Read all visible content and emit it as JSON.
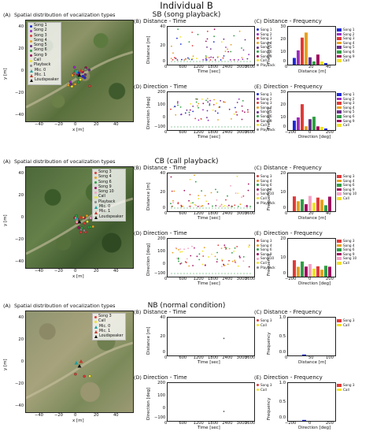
{
  "figure": {
    "title": "Individual B",
    "rows": [
      {
        "condition": "SB (song playback)",
        "map": {
          "label": "(A)",
          "title": "Spatial distribution of vocalization types",
          "legend": [
            "Song 1",
            "Song 2",
            "Song 3",
            "Song 4",
            "Song 5",
            "Song 6",
            "Song 9",
            "Call",
            "Playback",
            "Mic. 0",
            "Mic. 1",
            "Loudspeaker"
          ],
          "xlabel": "x [m]",
          "ylabel": "y [m]",
          "xticks": [
            "−40",
            "−20",
            "0",
            "20",
            "40"
          ],
          "yticks": [
            "40",
            "20",
            "0",
            "−20",
            "−40"
          ]
        },
        "panels": {
          "B": {
            "label": "(B)",
            "title": "Distance - Time",
            "ylabel": "Distance [m]",
            "xlabel": "Time [sec]",
            "yticks": [
              "40",
              "20",
              "0"
            ],
            "xticks": [
              "0",
              "600",
              "1200",
              "1800",
              "2400",
              "3000",
              "3600"
            ]
          },
          "C": {
            "label": "(C)",
            "title": "Distance - Frequency",
            "ylabel": "Frequency",
            "xlabel": "Distance [m]",
            "yticks": [
              "30",
              "20",
              "10",
              "0"
            ],
            "xticks": [
              "0",
              "20",
              "40"
            ]
          },
          "D": {
            "label": "(D)",
            "title": "Direction - Time",
            "ylabel": "Direction [deg]",
            "xlabel": "Time [sec]",
            "yticks": [
              "200",
              "100",
              "0",
              "−100"
            ],
            "xticks": [
              "0",
              "600",
              "1200",
              "1800",
              "2400",
              "3000",
              "3600"
            ]
          },
          "E": {
            "label": "(E)",
            "title": "Direction - Frequency",
            "ylabel": "Frequency",
            "xlabel": "Direction [deg]",
            "yticks": [
              "30",
              "20",
              "10",
              "0"
            ],
            "xticks": [
              "−200",
              "0",
              "200"
            ]
          }
        },
        "mid_legend": [
          "Song 1",
          "Song 2",
          "Song 3",
          "Song 4",
          "Song 5",
          "Song 6",
          "Song 9",
          "Call",
          "Playback"
        ],
        "right_legend": [
          "Song 1",
          "Song 2",
          "Song 3",
          "Song 4",
          "Song 5",
          "Song 6",
          "Song 9",
          "Call"
        ]
      },
      {
        "condition": "CB (call playback)",
        "map": {
          "label": "(A)",
          "title": "Spatial distribution of vocalization types",
          "legend": [
            "Song 3",
            "Song 4",
            "Song 6",
            "Song 9",
            "Song 10",
            "Call",
            "Playback",
            "Mic. 0",
            "Mic. 1",
            "Loudspeaker"
          ],
          "xlabel": "x [m]",
          "ylabel": "y [m]",
          "xticks": [
            "−40",
            "−20",
            "0",
            "20",
            "40"
          ],
          "yticks": [
            "40",
            "20",
            "0",
            "−20",
            "−40"
          ]
        },
        "panels": {
          "B": {
            "label": "(B)",
            "title": "Distance - Time",
            "ylabel": "Distance [m]",
            "xlabel": "Time [sec]",
            "yticks": [
              "40",
              "20",
              "0"
            ],
            "xticks": [
              "0",
              "600",
              "1200",
              "1800",
              "2400",
              "3000",
              "3600"
            ]
          },
          "C": {
            "label": "(C)",
            "title": "Distance - Frequency",
            "ylabel": "Frequency",
            "xlabel": "Distance [m]",
            "yticks": [
              "20",
              "10",
              "0"
            ],
            "xticks": [
              "0",
              "20",
              "40"
            ]
          },
          "D": {
            "label": "(D)",
            "title": "Direction - Time",
            "ylabel": "Direction [deg]",
            "xlabel": "Time [sec]",
            "yticks": [
              "200",
              "100",
              "0",
              "−100"
            ],
            "xticks": [
              "0",
              "600",
              "1200",
              "1800",
              "2400",
              "3000",
              "3600"
            ]
          },
          "E": {
            "label": "(E)",
            "title": "Direction - Frequency",
            "ylabel": "Frequency",
            "xlabel": "Direction [deg]",
            "yticks": [
              "20",
              "10",
              "0"
            ],
            "xticks": [
              "−200",
              "0",
              "200"
            ]
          }
        },
        "mid_legend": [
          "Song 3",
          "Song 4",
          "Song 6",
          "Song 9",
          "Song 10",
          "Call",
          "Playback"
        ],
        "right_legend": [
          "Song 3",
          "Song 4",
          "Song 6",
          "Song 9",
          "Song 10",
          "Call"
        ]
      },
      {
        "condition": "NB (normal condition)",
        "map": {
          "label": "(A)",
          "title": "Spatial distribution of vocalization types",
          "legend": [
            "Song 3",
            "Call",
            "Mic. 0",
            "Mic. 1",
            "Loudspeaker"
          ],
          "xlabel": "x [m]",
          "ylabel": "y [m]",
          "xticks": [
            "−40",
            "−20",
            "0",
            "20",
            "40"
          ],
          "yticks": [
            "40",
            "20",
            "0",
            "−20",
            "−40"
          ]
        },
        "panels": {
          "B": {
            "label": "(B)",
            "title": "Distance - Time",
            "ylabel": "Distance [m]",
            "xlabel": "Time [sec]",
            "yticks": [
              "40",
              "20",
              "0"
            ],
            "xticks": [
              "0",
              "600",
              "1200",
              "1800",
              "2400",
              "3000",
              "3600"
            ]
          },
          "C": {
            "label": "(C)",
            "title": "Distance - Frequency",
            "ylabel": "Frequency",
            "xlabel": "Distance [m]",
            "yticks": [
              "1.0",
              "0.5",
              "0.0"
            ],
            "xticks": [
              "0",
              "50",
              "100"
            ]
          },
          "D": {
            "label": "(D)",
            "title": "Direction - Time",
            "ylabel": "Direction [deg]",
            "xlabel": "Time [sec]",
            "yticks": [
              "200",
              "100",
              "0",
              "−100"
            ],
            "xticks": [
              "0",
              "600",
              "1200",
              "1800",
              "2400",
              "3000",
              "3600"
            ]
          },
          "E": {
            "label": "(E)",
            "title": "Direction - Frequency",
            "ylabel": "Frequency",
            "xlabel": "Direction [deg]",
            "yticks": [
              "1.0",
              "0.5",
              "0.0"
            ],
            "xticks": [
              "−200",
              "0",
              "200"
            ]
          }
        },
        "mid_legend": [
          "Song 3",
          "Call"
        ],
        "right_legend": [
          "Song 3",
          "Call"
        ]
      }
    ],
    "series_colors": {
      "Song 1": "#1f2bd6",
      "Song 2": "#9b2fc0",
      "Song 3": "#e03a3a",
      "Song 4": "#e8a020",
      "Song 5": "#6a2d8a",
      "Song 6": "#2f9e44",
      "Song 9": "#a01060",
      "Song 10": "#f5a3c7",
      "Call": "#f2e22b",
      "Playback": "#888888"
    }
  }
}
